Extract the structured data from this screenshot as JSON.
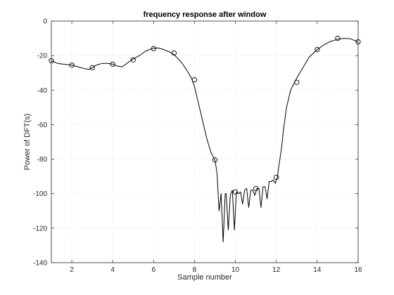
{
  "chart_data": {
    "type": "line",
    "title": "frequency response after window",
    "xlabel": "Sample number",
    "ylabel": "Power of DFT(s)",
    "xlim": [
      1,
      16
    ],
    "ylim": [
      -140,
      0
    ],
    "xticks": [
      2,
      4,
      6,
      8,
      10,
      12,
      14,
      16
    ],
    "yticks": [
      0,
      -20,
      -40,
      -60,
      -80,
      -100,
      -120,
      -140
    ],
    "grid": true,
    "legend": "none",
    "series": [
      {
        "kind": "curve",
        "color": "#000000",
        "x": [
          1.0,
          1.3,
          1.6,
          2.0,
          2.3,
          2.6,
          2.85,
          3.0,
          3.2,
          3.5,
          3.75,
          4.0,
          4.2,
          4.45,
          4.65,
          4.8,
          5.0,
          5.3,
          5.6,
          5.9,
          6.0,
          6.2,
          6.5,
          6.8,
          7.0,
          7.3,
          7.6,
          7.85,
          8.0,
          8.2,
          8.4,
          8.6,
          8.8,
          9.0,
          9.1,
          9.2,
          9.3,
          9.4,
          9.5,
          9.55,
          9.65,
          9.75,
          9.85,
          9.95,
          10.05,
          10.15,
          10.25,
          10.35,
          10.45,
          10.55,
          10.65,
          10.75,
          10.85,
          10.95,
          11.05,
          11.15,
          11.25,
          11.35,
          11.45,
          11.55,
          11.65,
          11.75,
          11.85,
          11.95,
          12.05,
          12.15,
          12.25,
          12.35,
          12.5,
          12.7,
          13.0,
          13.3,
          13.6,
          14.0,
          14.3,
          14.6,
          15.0,
          15.3,
          15.6,
          16.0
        ],
        "y": [
          -23,
          -24.5,
          -25,
          -25.5,
          -26.5,
          -27.5,
          -28,
          -27,
          -25.5,
          -24.5,
          -24.5,
          -25,
          -26,
          -26.5,
          -25,
          -23.5,
          -22,
          -20,
          -17.5,
          -16,
          -15.8,
          -15.5,
          -16.5,
          -18,
          -19.5,
          -23,
          -28,
          -33,
          -38,
          -48,
          -58,
          -68,
          -76,
          -80.5,
          -88,
          -110,
          -100,
          -128,
          -100,
          -100,
          -121,
          -101,
          -98,
          -121,
          -99,
          -100,
          -99,
          -106,
          -98,
          -97,
          -108,
          -98,
          -98,
          -101,
          -97,
          -97,
          -108,
          -96,
          -96,
          -103,
          -93,
          -93,
          -92,
          -94,
          -90.5,
          -82,
          -74,
          -63,
          -50,
          -40,
          -33,
          -27,
          -21,
          -16.5,
          -14,
          -12,
          -10.5,
          -10,
          -10.2,
          -12
        ]
      },
      {
        "kind": "markers",
        "marker": "circle",
        "color": "#000000",
        "x": [
          1,
          2,
          3,
          4,
          5,
          6,
          7,
          8,
          9,
          10,
          11,
          12,
          13,
          14,
          15,
          16
        ],
        "y": [
          -23,
          -25.5,
          -27,
          -25,
          -22.5,
          -16,
          -18.5,
          -34,
          -80.5,
          -99,
          -97,
          -90.5,
          -35.5,
          -16.5,
          -10,
          -12
        ]
      }
    ]
  }
}
